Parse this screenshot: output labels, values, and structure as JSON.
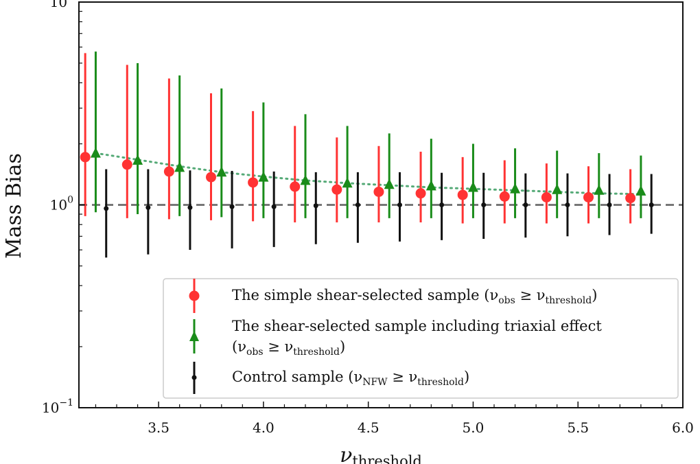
{
  "chart_data": {
    "type": "scatter",
    "xlabel": "ν",
    "xlabel_sub": "threshold",
    "ylabel": "Mass Bias",
    "xlim": [
      3.12,
      6.0
    ],
    "ylim": [
      0.1,
      10
    ],
    "yscale": "log",
    "x_ticks": [
      3.5,
      4.0,
      4.5,
      5.0,
      5.5,
      6.0
    ],
    "x_tick_labels": [
      "3.5",
      "4.0",
      "4.5",
      "5.0",
      "5.5",
      "6.0"
    ],
    "y_ticks": [
      {
        "value": 10,
        "base": "10",
        "exp": "1"
      },
      {
        "value": 1,
        "base": "10",
        "exp": "0"
      },
      {
        "value": 0.1,
        "base": "10",
        "exp": "−1"
      }
    ],
    "reference_line": {
      "y": 1.0,
      "style": "dashed",
      "color": "#777777"
    },
    "series": [
      {
        "name": "simple",
        "legend_main": "The simple shear-selected sample (ν",
        "legend_sub1": "obs",
        "legend_mid": " ≥ ν",
        "legend_sub2": "threshold",
        "legend_end": ")",
        "color": "#ff3333",
        "marker": "circle",
        "x": [
          3.15,
          3.35,
          3.55,
          3.75,
          3.95,
          4.15,
          4.35,
          4.55,
          4.75,
          4.95,
          5.15,
          5.35,
          5.55,
          5.75
        ],
        "y": [
          1.72,
          1.58,
          1.46,
          1.37,
          1.29,
          1.23,
          1.19,
          1.16,
          1.14,
          1.12,
          1.1,
          1.09,
          1.09,
          1.08
        ],
        "err_low": [
          0.88,
          0.86,
          0.85,
          0.84,
          0.83,
          0.82,
          0.82,
          0.82,
          0.82,
          0.81,
          0.81,
          0.81,
          0.81,
          0.81
        ],
        "err_high": [
          5.6,
          4.9,
          4.2,
          3.55,
          2.9,
          2.45,
          2.15,
          1.95,
          1.83,
          1.72,
          1.66,
          1.6,
          1.55,
          1.5
        ]
      },
      {
        "name": "triaxial",
        "legend_line1": "The shear-selected sample including triaxial effect",
        "legend_main": "(ν",
        "legend_sub1": "obs",
        "legend_mid": " ≥ ν",
        "legend_sub2": "threshold",
        "legend_end": ")",
        "color": "#1a8c1a",
        "marker": "triangle",
        "x": [
          3.2,
          3.4,
          3.6,
          3.8,
          4.0,
          4.2,
          4.4,
          4.6,
          4.8,
          5.0,
          5.2,
          5.4,
          5.6,
          5.8
        ],
        "y": [
          1.8,
          1.66,
          1.53,
          1.45,
          1.37,
          1.32,
          1.28,
          1.26,
          1.24,
          1.22,
          1.2,
          1.19,
          1.18,
          1.17
        ],
        "err_low": [
          0.92,
          0.9,
          0.88,
          0.87,
          0.86,
          0.86,
          0.86,
          0.86,
          0.86,
          0.86,
          0.86,
          0.86,
          0.86,
          0.86
        ],
        "err_high": [
          5.7,
          5.0,
          4.35,
          3.75,
          3.2,
          2.8,
          2.45,
          2.25,
          2.12,
          2.0,
          1.9,
          1.85,
          1.8,
          1.75
        ]
      },
      {
        "name": "control",
        "legend_main": "Control sample (ν",
        "legend_sub1": "NFW",
        "legend_mid": " ≥ ν",
        "legend_sub2": "threshold",
        "legend_end": ")",
        "color": "#111111",
        "marker": "dot",
        "x": [
          3.25,
          3.45,
          3.65,
          3.85,
          4.05,
          4.25,
          4.45,
          4.65,
          4.85,
          5.05,
          5.25,
          5.45,
          5.65,
          5.85
        ],
        "y": [
          0.96,
          0.97,
          0.97,
          0.98,
          0.98,
          0.99,
          1.0,
          1.0,
          1.0,
          1.0,
          1.0,
          1.0,
          1.0,
          1.0
        ],
        "err_low": [
          0.55,
          0.57,
          0.6,
          0.61,
          0.62,
          0.64,
          0.65,
          0.66,
          0.67,
          0.68,
          0.69,
          0.7,
          0.71,
          0.72
        ],
        "err_high": [
          1.5,
          1.5,
          1.48,
          1.47,
          1.46,
          1.45,
          1.45,
          1.45,
          1.44,
          1.44,
          1.43,
          1.43,
          1.42,
          1.42
        ]
      }
    ],
    "fit_curve": {
      "style": "dotted",
      "color": "#55aa77",
      "x": [
        3.2,
        3.4,
        3.6,
        3.8,
        4.0,
        4.2,
        4.4,
        4.6,
        4.8,
        5.0,
        5.2,
        5.4,
        5.6,
        5.8
      ],
      "y": [
        1.8,
        1.67,
        1.55,
        1.45,
        1.38,
        1.32,
        1.28,
        1.25,
        1.22,
        1.2,
        1.18,
        1.16,
        1.14,
        1.13
      ]
    },
    "legend": {
      "location": "lower-right"
    }
  }
}
